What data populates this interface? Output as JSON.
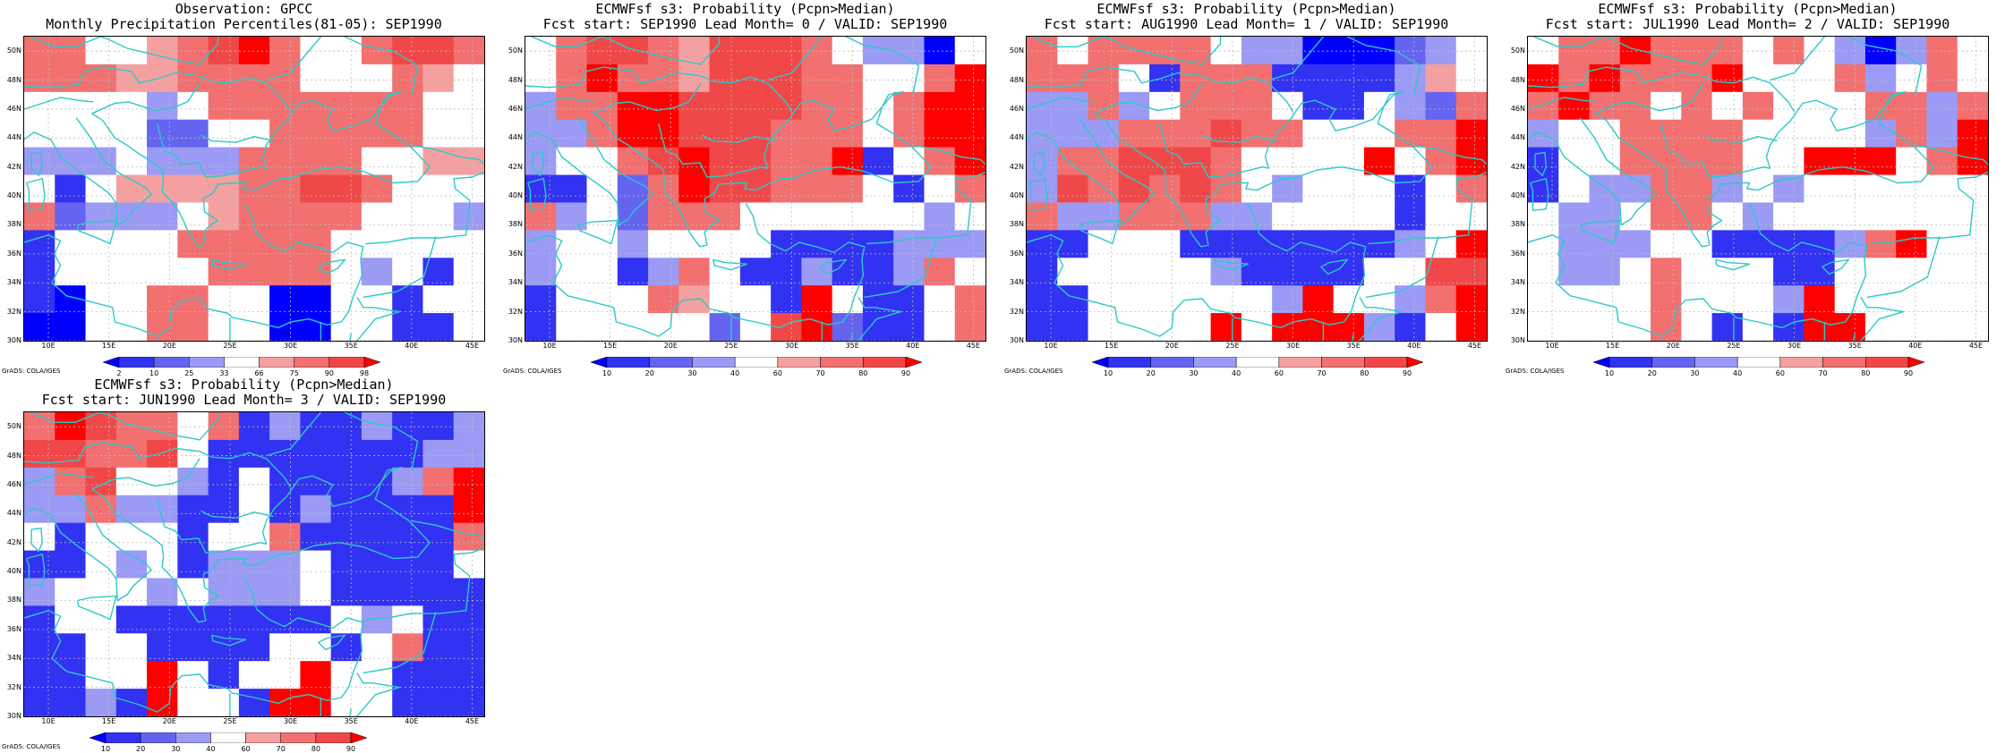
{
  "axes": {
    "lat_labels": [
      "50N",
      "48N",
      "46N",
      "44N",
      "42N",
      "40N",
      "38N",
      "36N",
      "34N",
      "32N",
      "30N"
    ],
    "lon_labels": [
      "10E",
      "15E",
      "20E",
      "25E",
      "30E",
      "35E",
      "40E",
      "45E"
    ],
    "lat_range": [
      30,
      51
    ],
    "lon_range": [
      8,
      46
    ]
  },
  "colors": {
    "coast": "#2ec8c8",
    "grid": "#bdbdbd",
    "levels": [
      "#0000ff",
      "#3232f2",
      "#6464f0",
      "#9b9bf5",
      "#ffffff",
      "#f5a0a0",
      "#f27070",
      "#f04848",
      "#ff0000"
    ]
  },
  "panels": [
    {
      "id": "obs",
      "title_line1": "Observation: GPCC",
      "title_line2": "Monthly Precipitation Percentiles(81-05): SEP1990",
      "colorbar_labels": [
        "2",
        "10",
        "25",
        "33",
        "66",
        "75",
        "90",
        "98"
      ],
      "credit": "GrADS: COLA/IGES",
      "chart_data": {
        "type": "heatmap",
        "rows": [
          "50N",
          "48N",
          "46N",
          "44N",
          "42N",
          "40N",
          "38N",
          "36N",
          "34N",
          "32N",
          "30N"
        ],
        "columns_start_lon": 8,
        "cell_width_deg": 2.5,
        "class_index": [
          [
            6,
            6,
            4,
            4,
            5,
            6,
            7,
            8,
            6,
            4,
            4,
            6,
            7,
            7,
            6
          ],
          [
            6,
            6,
            6,
            5,
            5,
            6,
            6,
            6,
            6,
            4,
            4,
            4,
            6,
            5,
            4
          ],
          [
            4,
            4,
            4,
            4,
            3,
            4,
            6,
            6,
            6,
            6,
            6,
            6,
            6,
            4,
            4
          ],
          [
            4,
            4,
            4,
            4,
            2,
            2,
            4,
            4,
            6,
            6,
            6,
            6,
            6,
            4,
            4
          ],
          [
            3,
            3,
            3,
            4,
            3,
            3,
            3,
            6,
            6,
            6,
            6,
            4,
            4,
            5,
            5
          ],
          [
            4,
            1,
            4,
            5,
            5,
            5,
            5,
            6,
            6,
            7,
            7,
            6,
            4,
            4,
            4
          ],
          [
            6,
            2,
            3,
            3,
            3,
            4,
            5,
            6,
            6,
            6,
            6,
            4,
            4,
            4,
            3
          ],
          [
            1,
            4,
            4,
            4,
            4,
            6,
            6,
            6,
            6,
            6,
            4,
            4,
            4,
            4,
            4
          ],
          [
            1,
            4,
            4,
            4,
            4,
            4,
            6,
            6,
            6,
            6,
            4,
            3,
            4,
            1,
            4
          ],
          [
            1,
            0,
            4,
            4,
            6,
            6,
            4,
            4,
            0,
            0,
            4,
            4,
            1,
            4,
            4
          ],
          [
            0,
            0,
            4,
            4,
            6,
            6,
            4,
            4,
            0,
            0,
            4,
            4,
            1,
            1,
            4
          ]
        ]
      }
    },
    {
      "id": "lead0",
      "title_line1": "ECMWFsf s3: Probability (Pcpn>Median)",
      "title_line2": "Fcst start: SEP1990  Lead Month= 0 / VALID: SEP1990",
      "colorbar_labels": [
        "10",
        "20",
        "30",
        "40",
        "60",
        "70",
        "80",
        "90"
      ],
      "credit": "GrADS: COLA/IGES",
      "chart_data": {
        "type": "heatmap",
        "rows": [
          "50N",
          "48N",
          "46N",
          "44N",
          "42N",
          "40N",
          "38N",
          "36N",
          "34N",
          "32N",
          "30N"
        ],
        "columns_start_lon": 8,
        "cell_width_deg": 2.5,
        "class_index": [
          [
            4,
            6,
            7,
            7,
            6,
            5,
            7,
            7,
            7,
            6,
            4,
            3,
            3,
            0,
            4
          ],
          [
            4,
            6,
            8,
            6,
            6,
            5,
            7,
            7,
            7,
            6,
            6,
            4,
            4,
            6,
            8
          ],
          [
            3,
            6,
            6,
            8,
            8,
            7,
            7,
            7,
            7,
            6,
            6,
            4,
            6,
            8,
            8
          ],
          [
            3,
            3,
            6,
            8,
            8,
            7,
            7,
            7,
            6,
            6,
            6,
            4,
            6,
            8,
            8
          ],
          [
            3,
            4,
            4,
            6,
            7,
            8,
            7,
            7,
            6,
            6,
            8,
            1,
            4,
            6,
            8
          ],
          [
            1,
            1,
            4,
            2,
            6,
            8,
            7,
            7,
            6,
            6,
            6,
            4,
            1,
            4,
            6
          ],
          [
            6,
            3,
            4,
            2,
            6,
            6,
            6,
            4,
            4,
            4,
            4,
            4,
            4,
            3,
            4
          ],
          [
            3,
            4,
            4,
            3,
            4,
            4,
            4,
            4,
            1,
            1,
            1,
            1,
            3,
            3,
            3
          ],
          [
            3,
            4,
            4,
            1,
            3,
            6,
            4,
            1,
            1,
            3,
            1,
            1,
            3,
            6,
            4
          ],
          [
            1,
            4,
            4,
            4,
            6,
            5,
            4,
            4,
            1,
            8,
            4,
            1,
            1,
            4,
            6
          ],
          [
            1,
            4,
            4,
            4,
            4,
            4,
            2,
            4,
            7,
            8,
            2,
            1,
            1,
            4,
            6
          ]
        ]
      }
    },
    {
      "id": "lead1",
      "title_line1": "ECMWFsf s3: Probability (Pcpn>Median)",
      "title_line2": "Fcst start: AUG1990  Lead Month= 1 / VALID: SEP1990",
      "colorbar_labels": [
        "10",
        "20",
        "30",
        "40",
        "60",
        "70",
        "80",
        "90"
      ],
      "credit": "GrADS: COLA/IGES",
      "chart_data": {
        "type": "heatmap",
        "rows": [
          "50N",
          "48N",
          "46N",
          "44N",
          "42N",
          "40N",
          "38N",
          "36N",
          "34N",
          "32N",
          "30N"
        ],
        "columns_start_lon": 8,
        "cell_width_deg": 2.5,
        "class_index": [
          [
            6,
            4,
            6,
            6,
            6,
            6,
            4,
            3,
            3,
            0,
            0,
            0,
            2,
            3,
            4
          ],
          [
            6,
            6,
            6,
            4,
            1,
            6,
            6,
            6,
            1,
            1,
            1,
            1,
            3,
            5,
            4
          ],
          [
            3,
            3,
            6,
            3,
            4,
            6,
            6,
            6,
            4,
            1,
            1,
            4,
            3,
            2,
            6
          ],
          [
            3,
            3,
            3,
            6,
            6,
            6,
            7,
            6,
            6,
            4,
            4,
            4,
            6,
            6,
            8
          ],
          [
            3,
            6,
            6,
            7,
            7,
            7,
            6,
            4,
            4,
            4,
            4,
            8,
            4,
            6,
            8
          ],
          [
            3,
            7,
            6,
            7,
            6,
            7,
            6,
            4,
            3,
            4,
            4,
            4,
            1,
            4,
            6
          ],
          [
            6,
            3,
            3,
            6,
            6,
            6,
            3,
            3,
            4,
            4,
            4,
            4,
            1,
            4,
            4
          ],
          [
            1,
            1,
            4,
            4,
            4,
            1,
            1,
            1,
            1,
            1,
            1,
            1,
            3,
            4,
            8
          ],
          [
            1,
            4,
            4,
            4,
            4,
            4,
            3,
            1,
            1,
            1,
            1,
            4,
            4,
            7,
            7
          ],
          [
            1,
            1,
            4,
            4,
            4,
            4,
            4,
            4,
            3,
            8,
            4,
            4,
            3,
            6,
            8
          ],
          [
            1,
            1,
            4,
            4,
            4,
            4,
            8,
            4,
            8,
            8,
            8,
            3,
            1,
            4,
            8
          ]
        ]
      }
    },
    {
      "id": "lead2",
      "title_line1": "ECMWFsf s3: Probability (Pcpn>Median)",
      "title_line2": "Fcst start: JUL1990  Lead Month= 2 / VALID: SEP1990",
      "colorbar_labels": [
        "10",
        "20",
        "30",
        "40",
        "60",
        "70",
        "80",
        "90"
      ],
      "credit": "GrADS: COLA/IGES",
      "chart_data": {
        "type": "heatmap",
        "rows": [
          "50N",
          "48N",
          "46N",
          "44N",
          "42N",
          "40N",
          "38N",
          "36N",
          "34N",
          "32N",
          "30N"
        ],
        "columns_start_lon": 8,
        "cell_width_deg": 2.5,
        "class_index": [
          [
            4,
            6,
            6,
            8,
            6,
            6,
            6,
            4,
            6,
            4,
            3,
            0,
            3,
            6,
            4
          ],
          [
            8,
            6,
            8,
            6,
            6,
            6,
            8,
            4,
            4,
            4,
            6,
            3,
            4,
            6,
            4
          ],
          [
            6,
            8,
            6,
            6,
            4,
            6,
            4,
            6,
            4,
            4,
            4,
            6,
            6,
            3,
            6
          ],
          [
            3,
            4,
            4,
            6,
            6,
            6,
            6,
            4,
            4,
            4,
            4,
            3,
            6,
            3,
            8
          ],
          [
            1,
            4,
            4,
            6,
            6,
            6,
            6,
            4,
            4,
            8,
            8,
            8,
            4,
            6,
            8
          ],
          [
            1,
            4,
            3,
            3,
            6,
            6,
            3,
            4,
            3,
            4,
            4,
            4,
            4,
            4,
            4
          ],
          [
            4,
            3,
            3,
            4,
            6,
            6,
            4,
            3,
            4,
            4,
            4,
            4,
            4,
            4,
            4
          ],
          [
            4,
            3,
            3,
            3,
            4,
            4,
            1,
            1,
            1,
            1,
            3,
            6,
            8,
            4,
            4
          ],
          [
            4,
            3,
            3,
            4,
            6,
            4,
            4,
            4,
            1,
            1,
            4,
            4,
            4,
            4,
            4
          ],
          [
            4,
            4,
            4,
            4,
            6,
            4,
            4,
            4,
            3,
            8,
            4,
            4,
            4,
            4,
            4
          ],
          [
            4,
            4,
            4,
            4,
            6,
            4,
            1,
            4,
            1,
            8,
            8,
            4,
            4,
            4,
            4
          ]
        ]
      }
    },
    {
      "id": "lead3",
      "title_line1": "ECMWFsf s3: Probability (Pcpn>Median)",
      "title_line2": "Fcst start: JUN1990  Lead Month= 3 / VALID: SEP1990",
      "colorbar_labels": [
        "10",
        "20",
        "30",
        "40",
        "60",
        "70",
        "80",
        "90"
      ],
      "credit": "GrADS: COLA/IGES",
      "chart_data": {
        "type": "heatmap",
        "rows": [
          "50N",
          "48N",
          "46N",
          "44N",
          "42N",
          "40N",
          "38N",
          "36N",
          "34N",
          "32N",
          "30N"
        ],
        "columns_start_lon": 8,
        "cell_width_deg": 2.5,
        "class_index": [
          [
            6,
            8,
            7,
            6,
            6,
            4,
            6,
            1,
            3,
            1,
            1,
            3,
            1,
            1,
            3
          ],
          [
            7,
            7,
            6,
            6,
            7,
            4,
            1,
            1,
            1,
            1,
            1,
            1,
            1,
            3,
            3
          ],
          [
            3,
            6,
            7,
            4,
            4,
            3,
            1,
            4,
            1,
            1,
            1,
            1,
            3,
            6,
            8
          ],
          [
            3,
            3,
            6,
            3,
            3,
            1,
            1,
            4,
            1,
            3,
            1,
            1,
            1,
            1,
            8
          ],
          [
            4,
            1,
            4,
            4,
            4,
            1,
            4,
            4,
            6,
            1,
            1,
            1,
            1,
            1,
            6
          ],
          [
            1,
            1,
            4,
            3,
            4,
            1,
            3,
            3,
            3,
            4,
            1,
            1,
            1,
            1,
            4
          ],
          [
            3,
            4,
            4,
            4,
            3,
            4,
            3,
            3,
            3,
            4,
            1,
            1,
            1,
            1,
            1
          ],
          [
            1,
            4,
            4,
            1,
            1,
            1,
            1,
            1,
            1,
            1,
            4,
            3,
            4,
            1,
            1
          ],
          [
            1,
            1,
            4,
            4,
            1,
            1,
            1,
            1,
            4,
            4,
            1,
            4,
            6,
            1,
            1
          ],
          [
            1,
            1,
            4,
            4,
            8,
            4,
            1,
            4,
            4,
            8,
            4,
            4,
            1,
            1,
            1
          ],
          [
            1,
            1,
            3,
            1,
            8,
            4,
            4,
            1,
            8,
            8,
            4,
            4,
            1,
            1,
            1
          ]
        ]
      }
    }
  ]
}
